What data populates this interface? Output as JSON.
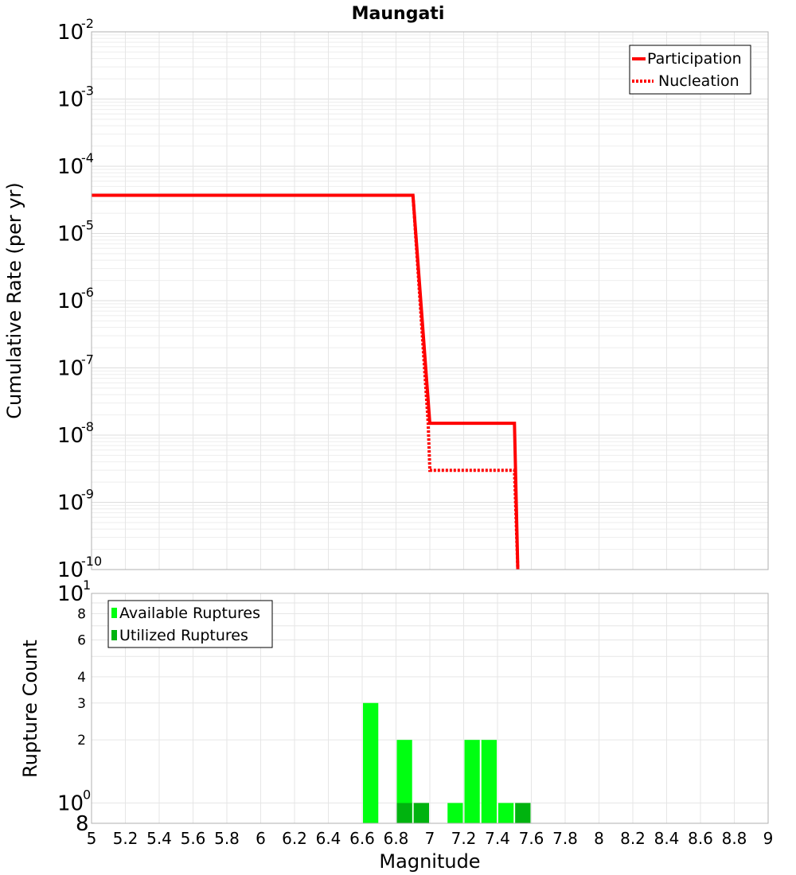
{
  "chart_data": [
    {
      "type": "line",
      "title": "Maungati",
      "xlabel": "",
      "ylabel": "Cumulative Rate (per yr)",
      "xlim": [
        5,
        9
      ],
      "ylim": [
        1e-10,
        0.01
      ],
      "yscale": "log",
      "grid": true,
      "legend_position": "top-right",
      "y_tick_bases": [
        "10",
        "10",
        "10",
        "10",
        "10",
        "10",
        "10",
        "10",
        "10"
      ],
      "y_tick_exponents": [
        "-10",
        "-9",
        "-8",
        "-7",
        "-6",
        "-5",
        "-4",
        "-3",
        "-2"
      ],
      "series": [
        {
          "name": "Participation",
          "style": "solid",
          "color": "#ff0000",
          "points": [
            [
              5.0,
              3.7e-05
            ],
            [
              6.9,
              3.7e-05
            ],
            [
              7.0,
              1.5e-08
            ],
            [
              7.5,
              1.5e-08
            ],
            [
              7.52,
              1e-10
            ]
          ]
        },
        {
          "name": "Nucleation",
          "style": "dotted",
          "color": "#ff0000",
          "points": [
            [
              5.0,
              3.7e-05
            ],
            [
              6.9,
              3.7e-05
            ],
            [
              6.99,
              1.5e-08
            ],
            [
              7.0,
              3e-09
            ],
            [
              7.5,
              3e-09
            ],
            [
              7.52,
              1e-10
            ]
          ]
        }
      ]
    },
    {
      "type": "bar",
      "title": "",
      "xlabel": "Magnitude",
      "ylabel": "Rupture Count",
      "xlim": [
        5,
        9
      ],
      "ylim": [
        0.8,
        10
      ],
      "yscale": "log",
      "grid": true,
      "legend_position": "top-left",
      "x_ticks": [
        "5",
        "5.2",
        "5.4",
        "5.6",
        "5.8",
        "6",
        "6.2",
        "6.4",
        "6.6",
        "6.8",
        "7",
        "7.2",
        "7.4",
        "7.6",
        "7.8",
        "8",
        "8.2",
        "8.4",
        "8.6",
        "8.8",
        "9"
      ],
      "y_ticks_small": [
        {
          "label": "8",
          "value": 8
        },
        {
          "label": "6",
          "value": 6
        },
        {
          "label": "4",
          "value": 4
        },
        {
          "label": "3",
          "value": 3
        },
        {
          "label": "2",
          "value": 2
        }
      ],
      "y_tick_power_top": {
        "base": "10",
        "exp": "1"
      },
      "y_tick_power_mid": {
        "base": "10",
        "exp": "0"
      },
      "y_tick_bottom": "8",
      "bar_width": 0.1,
      "series": [
        {
          "name": "Available Ruptures",
          "color": "#00ff11",
          "bars": [
            [
              6.65,
              3
            ],
            [
              6.85,
              2
            ],
            [
              6.95,
              1
            ],
            [
              7.15,
              1
            ],
            [
              7.25,
              2
            ],
            [
              7.35,
              2
            ],
            [
              7.45,
              1
            ],
            [
              7.55,
              1
            ]
          ]
        },
        {
          "name": "Utilized Ruptures",
          "color": "#00b30f",
          "bars": [
            [
              6.85,
              1
            ],
            [
              6.95,
              1
            ],
            [
              7.55,
              1
            ]
          ]
        }
      ]
    }
  ]
}
